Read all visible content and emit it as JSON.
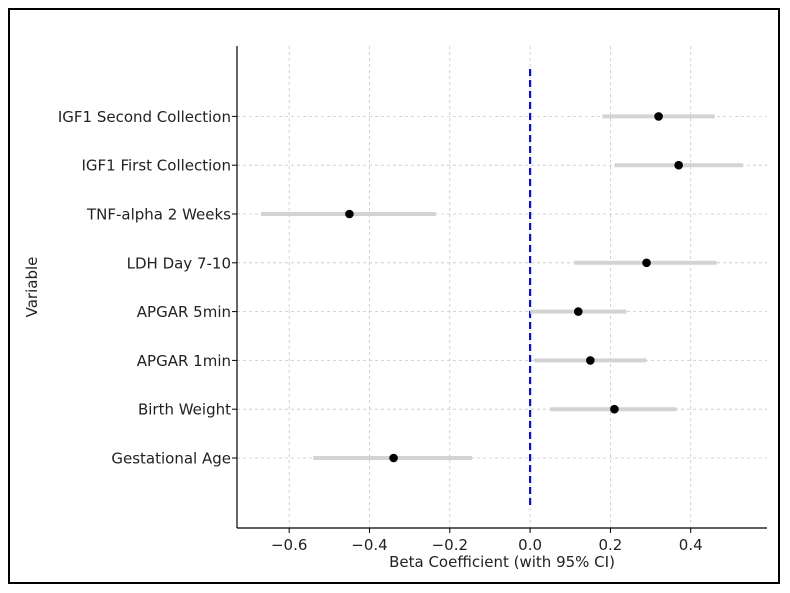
{
  "chart_data": {
    "type": "forest",
    "title": "",
    "xlabel": "Beta Coefficient (with 95% CI)",
    "ylabel": "Variable",
    "xlim": [
      -0.73,
      0.59
    ],
    "xticks": [
      -0.6,
      -0.4,
      -0.2,
      0.0,
      0.2,
      0.4
    ],
    "xtick_labels": [
      "−0.6",
      "−0.4",
      "−0.2",
      "0.0",
      "0.2",
      "0.4"
    ],
    "grid": true,
    "reference_line": {
      "x": 0.0,
      "color": "#1010c8",
      "style": "dashed"
    },
    "ci_color": "#d3d3d3",
    "point_color": "#000000",
    "categories": [
      "Gestational Age",
      "Birth Weight",
      "APGAR 1min",
      "APGAR 5min",
      "LDH Day 7-10",
      "TNF-alpha 2 Weeks",
      "IGF1 First Collection",
      "IGF1 Second Collection"
    ],
    "values": [
      -0.34,
      0.21,
      0.15,
      0.12,
      0.29,
      -0.45,
      0.37,
      0.32
    ],
    "ci_lower": [
      -0.54,
      0.05,
      0.01,
      0.0,
      0.11,
      -0.67,
      0.21,
      0.18
    ],
    "ci_upper": [
      -0.145,
      0.365,
      0.29,
      0.24,
      0.465,
      -0.235,
      0.53,
      0.46
    ]
  }
}
